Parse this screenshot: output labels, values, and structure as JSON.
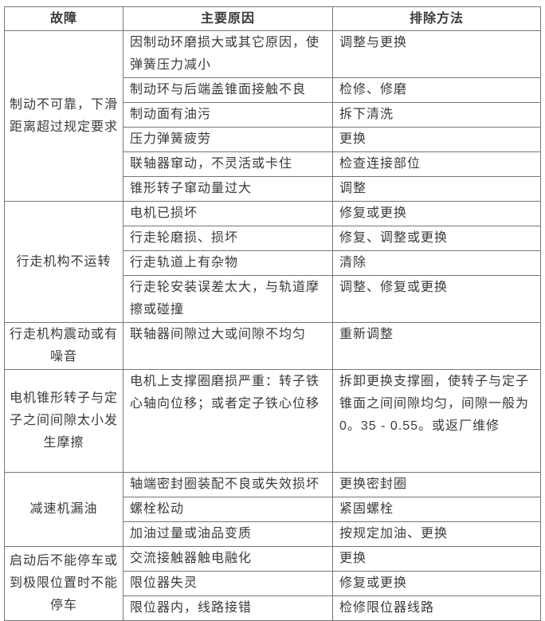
{
  "colors": {
    "border": "#767676",
    "text": "#3a3a3a",
    "background": "#ffffff"
  },
  "table": {
    "headers": [
      "故障",
      "主要原因",
      "排除方法"
    ],
    "groups": [
      {
        "fault": "制动不可靠，下滑距离超过规定要求",
        "rows": [
          {
            "cause": "因制动环磨损大或其它原因，使弹簧压力减小",
            "method": "调整与更换"
          },
          {
            "cause": "制动环与后端盖锥面接触不良",
            "method": "检修、修磨"
          },
          {
            "cause": "制动面有油污",
            "method": "拆下清洗"
          },
          {
            "cause": "压力弹簧疲劳",
            "method": "更换"
          },
          {
            "cause": "联轴器窜动，不灵活或卡住",
            "method": "检查连接部位"
          },
          {
            "cause": "锥形转子窜动量过大",
            "method": "调整"
          }
        ]
      },
      {
        "fault": "行走机构不运转",
        "rows": [
          {
            "cause": "电机已损坏",
            "method": "修复或更换"
          },
          {
            "cause": "行走轮磨损、损坏",
            "method": "修复、调整或更换"
          },
          {
            "cause": "行走轨道上有杂物",
            "method": "清除"
          },
          {
            "cause": "行走轮安装误差太大，与轨道摩擦或碰撞",
            "method": "调整、修复或更换"
          }
        ]
      },
      {
        "fault": "行走机构震动或有噪音",
        "rows": [
          {
            "cause": "联轴器间隙过大或间隙不均匀",
            "method": "重新调整"
          }
        ]
      },
      {
        "fault": "电机锥形转子与定子之间间隙太小发生摩擦",
        "rows": [
          {
            "cause": "电机上支撑圈磨损严重：转子铁心轴向位移；或者定子铁心位移",
            "method": "拆卸更换支撑圈，使转子与定子锥面之间间隙均匀，间隙一般为0。35 - 0.55。或返厂维修"
          }
        ]
      },
      {
        "fault": "减速机漏油",
        "rows": [
          {
            "cause": "轴端密封圈装配不良或失效损坏",
            "method": "更换密封圈"
          },
          {
            "cause": "螺栓松动",
            "method": "紧固螺栓"
          },
          {
            "cause": "加油过量或油品变质",
            "method": "按规定加油、更换"
          }
        ]
      },
      {
        "fault": "启动后不能停车或到极限位置时不能停车",
        "rows": [
          {
            "cause": "交流接触器触电融化",
            "method": "更换"
          },
          {
            "cause": "限位器失灵",
            "method": "修复或更换"
          },
          {
            "cause": "限位器内，线路接错",
            "method": "检修限位器线路"
          }
        ]
      }
    ]
  }
}
